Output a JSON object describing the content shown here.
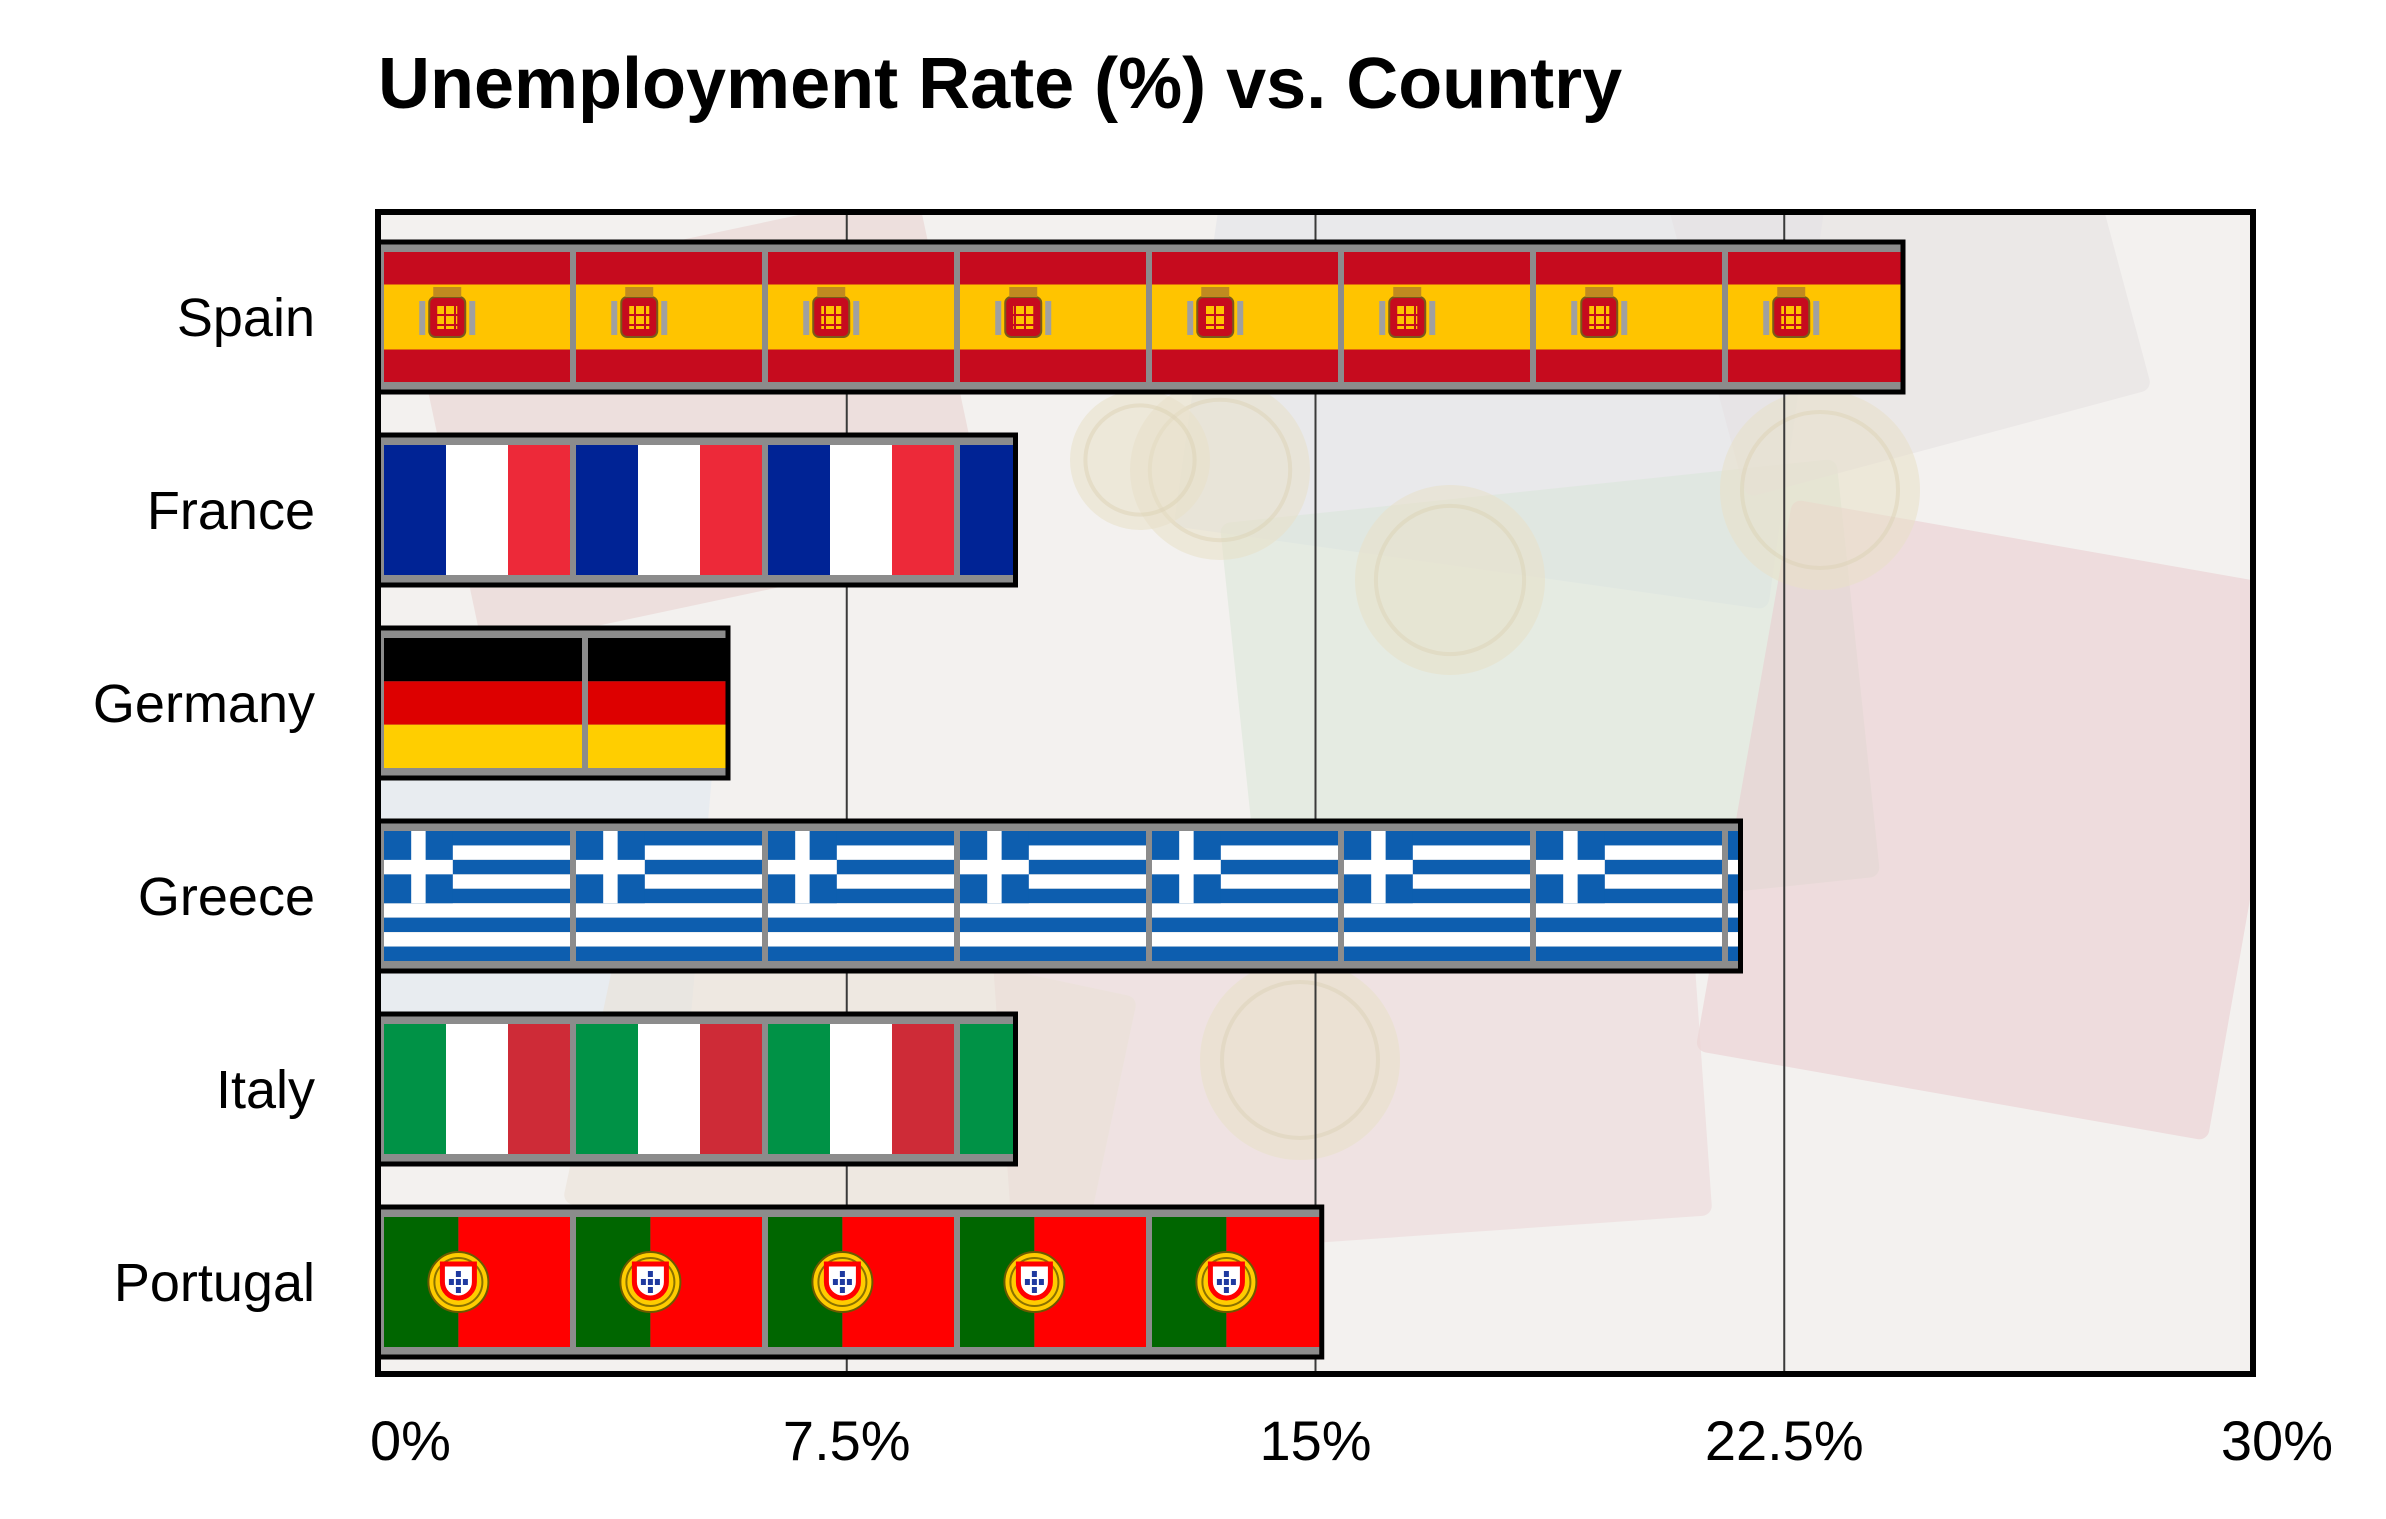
{
  "chart_data": {
    "type": "bar",
    "orientation": "horizontal",
    "title": "Unemployment Rate (%) vs. Country",
    "xlabel": "",
    "ylabel": "",
    "categories": [
      "Spain",
      "France",
      "Germany",
      "Greece",
      "Italy",
      "Portugal"
    ],
    "values": [
      24.4,
      10.2,
      5.6,
      21.8,
      10.2,
      15.1
    ],
    "xlim": [
      0,
      30
    ],
    "xticks": [
      0,
      7.5,
      15,
      22.5,
      30
    ],
    "xtick_labels": [
      "0%",
      "7.5%",
      "15%",
      "22.5%",
      "30%"
    ],
    "grid": "vertical",
    "legend": "none",
    "bar_fill": "country flag pictograms (repeated tiles)",
    "background": "faded euro banknotes and coins photograph",
    "flag_colors": {
      "Spain": [
        "#c60b1e",
        "#ffc400"
      ],
      "France": [
        "#002395",
        "#ffffff",
        "#ed2939"
      ],
      "Germany": [
        "#000000",
        "#dd0000",
        "#ffce00"
      ],
      "Greece": [
        "#0d5eaf",
        "#ffffff"
      ],
      "Italy": [
        "#009246",
        "#ffffff",
        "#ce2b37"
      ],
      "Portugal": [
        "#006600",
        "#ff0000",
        "#ffcc00"
      ]
    }
  }
}
